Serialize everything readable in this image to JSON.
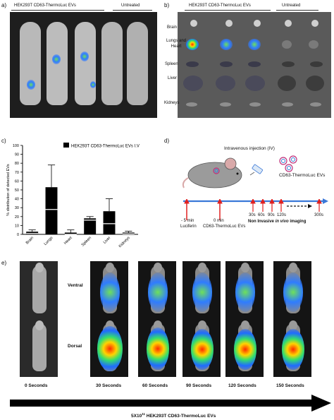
{
  "panel_a": {
    "label": "a)",
    "header_group1": "HEK293T CD63-ThermoLuc EVs",
    "header_group2": "Untreated"
  },
  "panel_b": {
    "label": "b)",
    "header_group1": "HEK293T CD63-ThermoLuc EVs",
    "header_group2": "Untreated",
    "rows": [
      "Brain",
      "Lungs and Heart",
      "Spleen",
      "Liver",
      "Kidneys"
    ]
  },
  "panel_c": {
    "label": "c)",
    "legend": "HEK293T CD63-ThermoLuc EVs I.V"
  },
  "panel_d": {
    "label": "d)",
    "injection_title": "Intravenous injection (IV)",
    "ev_label": "CD63-ThermoLuc EVs",
    "t_luciferin": "- 5 min",
    "t_luciferin_label": "Luciferin",
    "t_zero": "0 min",
    "t_zero_label": "CD63-ThermoLuc EVs",
    "t_points": [
      "30s",
      "60s",
      "90s",
      "120s"
    ],
    "t_last": "300s",
    "imaging_label_pre": "Non Invasive ",
    "imaging_label_em": "in vivo",
    "imaging_label_post": " imaging"
  },
  "panel_e": {
    "label": "e)",
    "row_ventral": "Ventral",
    "row_dorsal": "Dorsal",
    "times": [
      "0 Seconds",
      "30 Seconds",
      "60 Seconds",
      "90 Seconds",
      "120 Seconds",
      "150 Seconds"
    ],
    "arrow_label_pre": "5X10",
    "arrow_label_sup": "11",
    "arrow_label_post": " HEK293T CD63-ThermoLuc EVs"
  },
  "chart_data": {
    "type": "bar",
    "categories": [
      "Brain",
      "Lungs",
      "Heart",
      "Spleen",
      "Liver",
      "Kidneys"
    ],
    "series": [
      {
        "name": "HEK293T CD63-ThermoLuc EVs I.V",
        "values": [
          3,
          53,
          2,
          18,
          26,
          2
        ],
        "errors": [
          2,
          25,
          3,
          2,
          14,
          1.5
        ]
      }
    ],
    "ylabel": "% distribution of detected EVs",
    "ylim": [
      0,
      100
    ],
    "yticks": [
      0,
      10,
      20,
      30,
      40,
      50,
      60,
      70,
      80,
      90,
      100
    ],
    "legend_position": "top"
  },
  "colors": {
    "bar": "#000000",
    "timeline": "#3a78d8",
    "arrow_red": "#e02020"
  }
}
